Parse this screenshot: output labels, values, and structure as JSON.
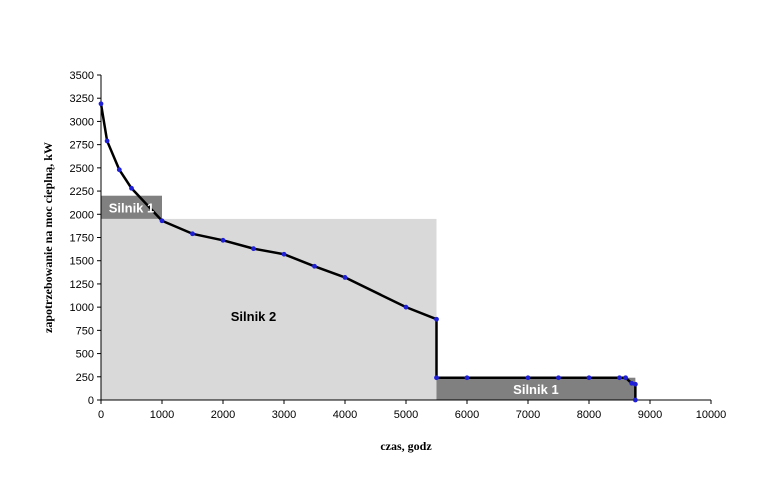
{
  "chart_data": {
    "type": "line",
    "xlabel": "czas, godz",
    "ylabel": "zapotrzebowanie na moc cieplną, kW",
    "xlim": [
      0,
      10000
    ],
    "ylim": [
      0,
      3500
    ],
    "xticks": [
      0,
      1000,
      2000,
      3000,
      4000,
      5000,
      6000,
      7000,
      8000,
      9000,
      10000
    ],
    "yticks": [
      0,
      250,
      500,
      750,
      1000,
      1250,
      1500,
      1750,
      2000,
      2250,
      2500,
      2750,
      3000,
      3250,
      3500
    ],
    "grid": false,
    "series": [
      {
        "color": "#000000",
        "marker_color": "#1f1fd6",
        "x": [
          0,
          100,
          300,
          500,
          1000,
          1500,
          2000,
          2500,
          3000,
          3500,
          4000,
          5000,
          5500,
          5500,
          6000,
          7000,
          7500,
          8000,
          8500,
          8600,
          8700,
          8760,
          8760
        ],
        "y": [
          3190,
          2790,
          2480,
          2280,
          1930,
          1790,
          1720,
          1630,
          1570,
          1440,
          1320,
          1000,
          870,
          240,
          240,
          240,
          240,
          240,
          240,
          240,
          180,
          170,
          0
        ]
      }
    ],
    "regions": [
      {
        "label": "Silnik 1",
        "x": [
          0,
          1000
        ],
        "y": [
          1950,
          2200
        ],
        "fill": "#808080",
        "text_color": "#ffffff"
      },
      {
        "label": "Silnik 2",
        "x": [
          0,
          5500
        ],
        "y": [
          0,
          1950
        ],
        "fill": "#d9d9d9",
        "text_color": "#000000"
      },
      {
        "label": "Silnik 1",
        "x": [
          5500,
          8760
        ],
        "y": [
          0,
          240
        ],
        "fill": "#808080",
        "text_color": "#ffffff"
      }
    ]
  }
}
